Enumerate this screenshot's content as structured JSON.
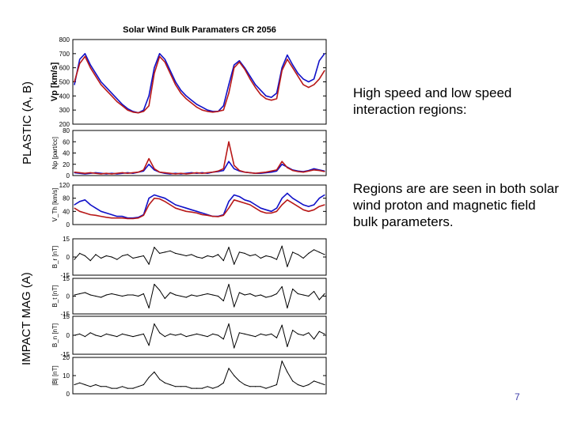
{
  "side_labels": {
    "plastic": "PLASTIC (A, B)",
    "impact": "IMPACT MAG (A)"
  },
  "text": {
    "point1": "High speed and low speed interaction regions:",
    "point2": "Regions are are seen in both solar wind proton and magnetic field bulk parameters.",
    "page_number": "7"
  },
  "colors": {
    "series_a": "#1010c8",
    "series_b": "#b81818",
    "mag": "#000000"
  },
  "chart_data": [
    {
      "type": "line",
      "title": "Solar Wind Bulk Paramaters CR 2056",
      "ylabel": "Vp [km/s]",
      "ylim": [
        200,
        800
      ],
      "yticks": [
        200,
        300,
        400,
        500,
        600,
        700,
        800
      ],
      "series": [
        {
          "key": "a",
          "values": [
            480,
            660,
            700,
            620,
            560,
            500,
            460,
            420,
            380,
            340,
            310,
            290,
            280,
            300,
            400,
            600,
            700,
            660,
            580,
            500,
            440,
            400,
            370,
            340,
            320,
            300,
            290,
            290,
            330,
            480,
            620,
            650,
            600,
            540,
            480,
            440,
            400,
            390,
            420,
            600,
            690,
            620,
            560,
            520,
            500,
            520,
            650,
            700
          ]
        },
        {
          "key": "b",
          "values": [
            500,
            630,
            680,
            600,
            540,
            480,
            440,
            400,
            360,
            330,
            300,
            285,
            280,
            290,
            330,
            560,
            680,
            640,
            560,
            480,
            420,
            380,
            350,
            320,
            300,
            290,
            285,
            290,
            300,
            420,
            600,
            640,
            590,
            520,
            460,
            410,
            380,
            370,
            380,
            580,
            660,
            600,
            540,
            480,
            460,
            480,
            520,
            580
          ]
        }
      ]
    },
    {
      "type": "line",
      "ylabel": "Np [part/cc]",
      "ylim": [
        0,
        80
      ],
      "yticks": [
        0,
        20,
        40,
        60,
        80
      ],
      "series": [
        {
          "key": "a",
          "values": [
            5,
            4,
            3,
            4,
            5,
            4,
            3,
            4,
            3,
            4,
            5,
            4,
            6,
            8,
            20,
            10,
            6,
            4,
            3,
            4,
            3,
            4,
            5,
            4,
            5,
            4,
            6,
            7,
            9,
            25,
            12,
            8,
            6,
            5,
            4,
            4,
            5,
            6,
            8,
            20,
            15,
            10,
            8,
            7,
            9,
            12,
            10,
            8
          ]
        },
        {
          "key": "b",
          "values": [
            6,
            5,
            4,
            5,
            4,
            3,
            4,
            3,
            4,
            5,
            4,
            5,
            6,
            10,
            30,
            12,
            6,
            5,
            4,
            3,
            4,
            3,
            4,
            5,
            4,
            5,
            6,
            8,
            12,
            60,
            18,
            9,
            6,
            5,
            4,
            5,
            6,
            8,
            10,
            25,
            14,
            9,
            7,
            6,
            8,
            10,
            9,
            7
          ]
        }
      ]
    },
    {
      "type": "line",
      "ylabel": "V_Th [km/s]",
      "ylim": [
        0,
        120
      ],
      "yticks": [
        0,
        40,
        80,
        120
      ],
      "series": [
        {
          "key": "a",
          "values": [
            60,
            70,
            75,
            60,
            50,
            40,
            35,
            30,
            25,
            25,
            20,
            20,
            22,
            30,
            80,
            90,
            85,
            80,
            70,
            60,
            55,
            50,
            45,
            40,
            35,
            30,
            25,
            25,
            30,
            70,
            90,
            85,
            75,
            70,
            60,
            50,
            45,
            40,
            50,
            80,
            95,
            80,
            70,
            60,
            55,
            60,
            80,
            90
          ]
        },
        {
          "key": "b",
          "values": [
            50,
            40,
            35,
            30,
            28,
            25,
            22,
            20,
            20,
            20,
            18,
            18,
            20,
            28,
            60,
            80,
            78,
            70,
            60,
            50,
            45,
            40,
            38,
            35,
            30,
            28,
            25,
            24,
            28,
            50,
            75,
            70,
            65,
            60,
            50,
            40,
            35,
            35,
            40,
            60,
            75,
            65,
            55,
            45,
            40,
            45,
            55,
            60
          ]
        }
      ]
    },
    {
      "type": "line",
      "ylabel": "B_r [nT]",
      "ylim": [
        -15,
        15
      ],
      "yticks": [
        -15,
        0,
        15
      ],
      "series": [
        {
          "key": "mag",
          "values": [
            -2,
            3,
            1,
            -3,
            2,
            -1,
            1,
            0,
            -2,
            1,
            2,
            -1,
            0,
            1,
            -6,
            8,
            3,
            4,
            5,
            3,
            2,
            1,
            2,
            0,
            -1,
            1,
            0,
            2,
            -3,
            8,
            -6,
            4,
            3,
            1,
            2,
            -1,
            1,
            0,
            -2,
            9,
            -8,
            4,
            2,
            -1,
            3,
            6,
            4,
            2
          ]
        }
      ]
    },
    {
      "type": "line",
      "ylabel": "B_t [nT]",
      "ylim": [
        -15,
        15
      ],
      "yticks": [
        -15,
        0,
        15
      ],
      "series": [
        {
          "key": "mag",
          "values": [
            1,
            2,
            3,
            1,
            0,
            -1,
            1,
            2,
            1,
            0,
            1,
            1,
            0,
            2,
            -10,
            10,
            5,
            -2,
            3,
            1,
            0,
            -1,
            1,
            0,
            1,
            2,
            1,
            0,
            -4,
            10,
            -9,
            3,
            1,
            2,
            0,
            1,
            -1,
            0,
            2,
            8,
            -10,
            6,
            2,
            1,
            0,
            4,
            -3,
            2
          ]
        }
      ]
    },
    {
      "type": "line",
      "ylabel": "B_n [nT]",
      "ylim": [
        -15,
        15
      ],
      "yticks": [
        -15,
        0,
        15
      ],
      "series": [
        {
          "key": "mag",
          "values": [
            0,
            1,
            -1,
            2,
            0,
            -1,
            1,
            0,
            -1,
            1,
            0,
            -1,
            0,
            1,
            -8,
            9,
            2,
            -1,
            1,
            0,
            1,
            -1,
            0,
            1,
            0,
            -1,
            1,
            0,
            -3,
            9,
            -10,
            2,
            1,
            0,
            -1,
            1,
            0,
            1,
            -2,
            8,
            -9,
            4,
            1,
            0,
            2,
            -3,
            3,
            1
          ]
        }
      ]
    },
    {
      "type": "line",
      "ylabel": "|B| [nT]",
      "ylim": [
        0,
        20
      ],
      "yticks": [
        0,
        10,
        20
      ],
      "series": [
        {
          "key": "mag",
          "values": [
            5,
            6,
            5,
            4,
            5,
            4,
            4,
            3,
            3,
            4,
            3,
            3,
            4,
            5,
            9,
            12,
            8,
            6,
            5,
            4,
            4,
            4,
            3,
            3,
            3,
            4,
            3,
            4,
            6,
            14,
            10,
            7,
            5,
            4,
            4,
            4,
            3,
            4,
            5,
            18,
            12,
            7,
            5,
            4,
            5,
            7,
            6,
            5
          ]
        }
      ]
    }
  ]
}
